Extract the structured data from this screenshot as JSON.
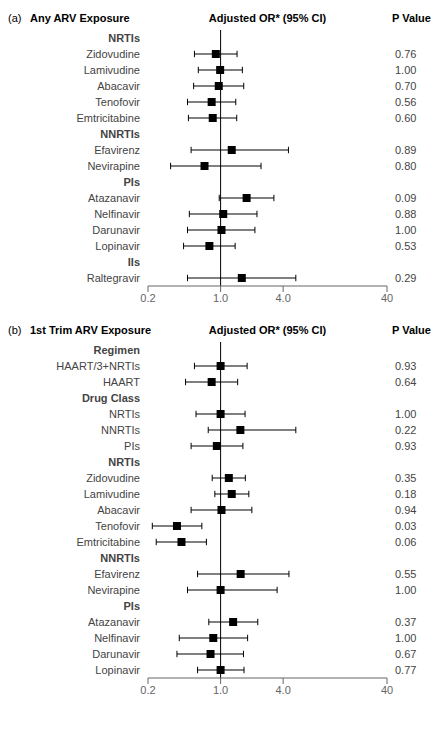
{
  "chart_data": [
    {
      "type": "forest",
      "panel_label": "(a)",
      "title": "Any ARV Exposure",
      "col_header": "Adjusted OR* (95% CI)",
      "col_pvalue": "P Value",
      "log": "x",
      "xlim": [
        0.2,
        40
      ],
      "xticks": [
        0.2,
        {
          "value": 1,
          "label": "1.0"
        },
        {
          "value": 4,
          "label": "4.0"
        },
        40
      ],
      "reference_line": 1,
      "marker": "square",
      "color": "#000000",
      "categories": [
        "NRTIs",
        "Zidovudine",
        "Lamivudine",
        "Abacavir",
        "Tenofovir",
        "Emtricitabine",
        "NNRTIs",
        "Efavirenz",
        "Nevirapine",
        "PIs",
        "Atazanavir",
        "Nelfinavir",
        "Darunavir",
        "Lopinavir",
        "IIs",
        "Raltegravir"
      ],
      "values": [
        null,
        0.9,
        0.99,
        0.96,
        0.82,
        0.84,
        null,
        1.28,
        0.7,
        null,
        1.78,
        1.06,
        1.02,
        0.78,
        null,
        1.6
      ],
      "lo": [
        null,
        0.56,
        0.61,
        0.55,
        0.48,
        0.49,
        null,
        0.52,
        0.33,
        null,
        0.97,
        0.5,
        0.48,
        0.44,
        null,
        0.48
      ],
      "hi": [
        null,
        1.44,
        1.62,
        1.67,
        1.4,
        1.43,
        null,
        4.5,
        2.45,
        null,
        3.26,
        2.24,
        2.14,
        1.38,
        null,
        5.3
      ],
      "pvalues": [
        null,
        "0.76",
        "1.00",
        "0.70",
        "0.56",
        "0.60",
        null,
        "0.89",
        "0.80",
        null,
        "0.09",
        "0.88",
        "1.00",
        "0.53",
        null,
        "0.29"
      ]
    },
    {
      "type": "forest",
      "panel_label": "(b)",
      "title": "1st Trim ARV Exposure",
      "col_header": "Adjusted OR* (95% CI)",
      "col_pvalue": "P Value",
      "log": "x",
      "xlim": [
        0.2,
        40
      ],
      "xticks": [
        0.2,
        {
          "value": 1,
          "label": "1.0"
        },
        {
          "value": 4,
          "label": "4.0"
        },
        40
      ],
      "reference_line": 1,
      "marker": "square",
      "color": "#000000",
      "categories": [
        "Regimen",
        "HAART/3+NRTIs",
        "HAART",
        "Drug Class",
        "NRTIs",
        "NNRTIs",
        "PIs",
        "NRTIs",
        "Zidovudine",
        "Lamivudine",
        "Abacavir",
        "Tenofovir",
        "Emtricitabine",
        "NNRTIs",
        "Efavirenz",
        "Nevirapine",
        "PIs",
        "Atazanavir",
        "Nelfinavir",
        "Darunavir",
        "Lopinavir"
      ],
      "values": [
        null,
        1.0,
        0.82,
        null,
        1.0,
        1.55,
        0.92,
        null,
        1.2,
        1.28,
        1.02,
        0.38,
        0.42,
        null,
        1.56,
        1.0,
        null,
        1.32,
        0.85,
        0.8,
        1.0
      ],
      "lo": [
        null,
        0.56,
        0.46,
        null,
        0.58,
        0.76,
        0.52,
        null,
        0.83,
        0.88,
        0.52,
        0.22,
        0.24,
        null,
        0.6,
        0.48,
        null,
        0.77,
        0.4,
        0.38,
        0.6
      ],
      "hi": [
        null,
        1.8,
        1.46,
        null,
        1.72,
        5.3,
        1.64,
        null,
        1.73,
        1.87,
        2.0,
        0.66,
        0.73,
        null,
        4.55,
        3.5,
        null,
        2.28,
        1.82,
        1.66,
        1.68
      ],
      "pvalues": [
        null,
        "0.93",
        "0.64",
        null,
        "1.00",
        "0.22",
        "0.93",
        null,
        "0.35",
        "0.18",
        "0.94",
        "0.03",
        "0.06",
        null,
        "0.55",
        "1.00",
        null,
        "0.37",
        "1.00",
        "0.67",
        "0.77"
      ]
    }
  ]
}
